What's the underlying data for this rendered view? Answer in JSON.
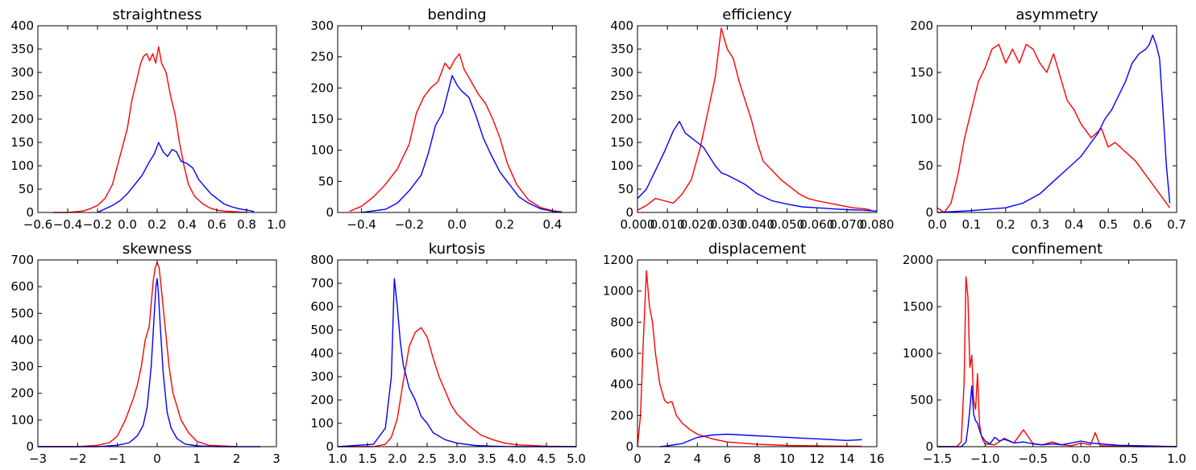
{
  "chart_data": [
    {
      "type": "line",
      "title": "straightness",
      "xlim": [
        -0.6,
        1.0
      ],
      "ylim": [
        0,
        400
      ],
      "xticks": [
        "−0.6",
        "−0.4",
        "−0.2",
        "0.0",
        "0.2",
        "0.4",
        "0.6",
        "0.8",
        "1.0"
      ],
      "yticks": [
        "0",
        "50",
        "100",
        "150",
        "200",
        "250",
        "300",
        "350",
        "400"
      ],
      "series": [
        {
          "color": "#ff0000",
          "x": [
            -0.5,
            -0.4,
            -0.3,
            -0.25,
            -0.2,
            -0.15,
            -0.1,
            -0.05,
            0.0,
            0.03,
            0.06,
            0.09,
            0.11,
            0.13,
            0.15,
            0.17,
            0.19,
            0.21,
            0.23,
            0.26,
            0.29,
            0.32,
            0.35,
            0.38,
            0.41,
            0.45,
            0.5,
            0.55,
            0.6,
            0.65,
            0.7,
            0.75,
            0.8
          ],
          "y": [
            0,
            0,
            3,
            8,
            15,
            30,
            60,
            120,
            180,
            240,
            280,
            320,
            335,
            340,
            325,
            340,
            320,
            355,
            320,
            300,
            250,
            210,
            150,
            100,
            60,
            35,
            20,
            10,
            5,
            3,
            2,
            1,
            0
          ]
        },
        {
          "color": "#0000ff",
          "x": [
            -0.2,
            -0.1,
            -0.05,
            0.0,
            0.05,
            0.1,
            0.15,
            0.18,
            0.21,
            0.24,
            0.27,
            0.3,
            0.33,
            0.36,
            0.4,
            0.44,
            0.48,
            0.52,
            0.56,
            0.6,
            0.65,
            0.7,
            0.75,
            0.8,
            0.85
          ],
          "y": [
            0,
            15,
            25,
            40,
            60,
            80,
            110,
            125,
            150,
            130,
            120,
            135,
            130,
            110,
            105,
            95,
            70,
            55,
            40,
            30,
            18,
            12,
            8,
            5,
            2
          ]
        }
      ]
    },
    {
      "type": "line",
      "title": "bending",
      "xlim": [
        -0.5,
        0.5
      ],
      "ylim": [
        0,
        300
      ],
      "xticks": [
        "−0.4",
        "−0.2",
        "0.0",
        "0.2",
        "0.4"
      ],
      "yticks": [
        "0",
        "50",
        "100",
        "150",
        "200",
        "250",
        "300"
      ],
      "series": [
        {
          "color": "#ff0000",
          "x": [
            -0.45,
            -0.4,
            -0.35,
            -0.3,
            -0.25,
            -0.2,
            -0.17,
            -0.14,
            -0.11,
            -0.08,
            -0.05,
            -0.03,
            -0.01,
            0.01,
            0.03,
            0.06,
            0.09,
            0.12,
            0.15,
            0.18,
            0.21,
            0.25,
            0.3,
            0.35,
            0.4,
            0.44
          ],
          "y": [
            2,
            10,
            25,
            45,
            70,
            110,
            160,
            185,
            200,
            210,
            240,
            230,
            245,
            255,
            230,
            210,
            190,
            175,
            150,
            120,
            80,
            45,
            20,
            8,
            3,
            1
          ]
        },
        {
          "color": "#0000ff",
          "x": [
            -0.4,
            -0.3,
            -0.25,
            -0.2,
            -0.15,
            -0.12,
            -0.09,
            -0.06,
            -0.04,
            -0.02,
            0.0,
            0.02,
            0.05,
            0.08,
            0.11,
            0.14,
            0.18,
            0.22,
            0.26,
            0.3,
            0.35,
            0.4,
            0.44
          ],
          "y": [
            0,
            5,
            15,
            35,
            60,
            95,
            140,
            160,
            190,
            220,
            205,
            195,
            185,
            155,
            120,
            95,
            65,
            45,
            25,
            15,
            6,
            2,
            0
          ]
        }
      ]
    },
    {
      "type": "line",
      "title": "efficiency",
      "xlim": [
        0.0,
        0.08
      ],
      "ylim": [
        0,
        400
      ],
      "xticks": [
        "0.000",
        "0.010",
        "0.020",
        "0.030",
        "0.040",
        "0.050",
        "0.060",
        "0.070",
        "0.080"
      ],
      "yticks": [
        "0",
        "50",
        "100",
        "150",
        "200",
        "250",
        "300",
        "350",
        "400"
      ],
      "series": [
        {
          "color": "#ff0000",
          "x": [
            0.0,
            0.003,
            0.006,
            0.009,
            0.012,
            0.015,
            0.018,
            0.021,
            0.024,
            0.026,
            0.028,
            0.03,
            0.032,
            0.034,
            0.036,
            0.038,
            0.04,
            0.042,
            0.045,
            0.048,
            0.051,
            0.054,
            0.057,
            0.06,
            0.064,
            0.068,
            0.072,
            0.076,
            0.078
          ],
          "y": [
            5,
            15,
            30,
            25,
            20,
            40,
            70,
            140,
            230,
            290,
            395,
            350,
            330,
            280,
            240,
            200,
            150,
            110,
            90,
            70,
            55,
            40,
            30,
            25,
            20,
            15,
            10,
            8,
            5
          ]
        },
        {
          "color": "#0000ff",
          "x": [
            0.0,
            0.003,
            0.006,
            0.009,
            0.012,
            0.014,
            0.016,
            0.018,
            0.02,
            0.022,
            0.024,
            0.026,
            0.028,
            0.03,
            0.033,
            0.036,
            0.04,
            0.045,
            0.05,
            0.055,
            0.06,
            0.065,
            0.07,
            0.075,
            0.08
          ],
          "y": [
            30,
            50,
            90,
            130,
            175,
            195,
            170,
            160,
            150,
            140,
            120,
            100,
            85,
            80,
            70,
            60,
            40,
            25,
            18,
            12,
            10,
            8,
            6,
            5,
            3
          ]
        }
      ]
    },
    {
      "type": "line",
      "title": "asymmetry",
      "xlim": [
        0.0,
        0.7
      ],
      "ylim": [
        0,
        200
      ],
      "xticks": [
        "0.0",
        "0.1",
        "0.2",
        "0.3",
        "0.4",
        "0.5",
        "0.6",
        "0.7"
      ],
      "yticks": [
        "0",
        "50",
        "100",
        "150",
        "200"
      ],
      "series": [
        {
          "color": "#ff0000",
          "x": [
            0.0,
            0.02,
            0.04,
            0.06,
            0.08,
            0.1,
            0.12,
            0.14,
            0.16,
            0.18,
            0.2,
            0.22,
            0.24,
            0.26,
            0.28,
            0.3,
            0.32,
            0.34,
            0.36,
            0.38,
            0.4,
            0.42,
            0.45,
            0.48,
            0.5,
            0.52,
            0.55,
            0.58,
            0.6,
            0.62,
            0.64,
            0.66,
            0.68
          ],
          "y": [
            5,
            0,
            10,
            40,
            80,
            110,
            140,
            155,
            175,
            180,
            160,
            175,
            160,
            180,
            175,
            160,
            150,
            170,
            145,
            120,
            110,
            95,
            80,
            90,
            70,
            75,
            65,
            55,
            45,
            35,
            25,
            15,
            5
          ]
        },
        {
          "color": "#0000ff",
          "x": [
            0.0,
            0.1,
            0.2,
            0.25,
            0.3,
            0.33,
            0.36,
            0.39,
            0.42,
            0.45,
            0.47,
            0.49,
            0.51,
            0.53,
            0.55,
            0.57,
            0.59,
            0.61,
            0.62,
            0.63,
            0.64,
            0.65,
            0.66,
            0.67,
            0.68
          ],
          "y": [
            0,
            2,
            5,
            10,
            20,
            30,
            40,
            50,
            60,
            75,
            85,
            100,
            110,
            125,
            140,
            160,
            170,
            175,
            180,
            190,
            180,
            165,
            110,
            50,
            10
          ]
        }
      ]
    },
    {
      "type": "line",
      "title": "skewness",
      "xlim": [
        -3,
        3
      ],
      "ylim": [
        0,
        700
      ],
      "xticks": [
        "−3",
        "−2",
        "−1",
        "0",
        "1",
        "2",
        "3"
      ],
      "yticks": [
        "0",
        "100",
        "200",
        "300",
        "400",
        "500",
        "600",
        "700"
      ],
      "series": [
        {
          "color": "#ff0000",
          "x": [
            -3.0,
            -2.0,
            -1.5,
            -1.2,
            -1.0,
            -0.8,
            -0.6,
            -0.5,
            -0.4,
            -0.3,
            -0.2,
            -0.1,
            -0.05,
            0.0,
            0.05,
            0.1,
            0.2,
            0.3,
            0.4,
            0.5,
            0.6,
            0.8,
            1.0,
            1.3,
            2.0
          ],
          "y": [
            0,
            0,
            5,
            15,
            40,
            100,
            180,
            230,
            300,
            400,
            450,
            620,
            670,
            690,
            670,
            600,
            450,
            300,
            200,
            150,
            100,
            50,
            20,
            5,
            0
          ]
        },
        {
          "color": "#0000ff",
          "x": [
            -3.0,
            -1.5,
            -1.0,
            -0.7,
            -0.5,
            -0.35,
            -0.25,
            -0.15,
            -0.08,
            -0.03,
            0.0,
            0.03,
            0.08,
            0.15,
            0.25,
            0.35,
            0.5,
            0.7,
            1.0,
            1.5,
            2.6
          ],
          "y": [
            0,
            0,
            5,
            15,
            40,
            80,
            150,
            300,
            480,
            600,
            630,
            580,
            450,
            280,
            130,
            70,
            30,
            10,
            3,
            0,
            0
          ]
        }
      ]
    },
    {
      "type": "line",
      "title": "kurtosis",
      "xlim": [
        1.0,
        5.0
      ],
      "ylim": [
        0,
        800
      ],
      "xticks": [
        "1.0",
        "1.5",
        "2.0",
        "2.5",
        "3.0",
        "3.5",
        "4.0",
        "4.5",
        "5.0"
      ],
      "yticks": [
        "0",
        "100",
        "200",
        "300",
        "400",
        "500",
        "600",
        "700",
        "800"
      ],
      "series": [
        {
          "color": "#ff0000",
          "x": [
            1.0,
            1.6,
            1.8,
            1.9,
            2.0,
            2.1,
            2.2,
            2.3,
            2.4,
            2.5,
            2.6,
            2.7,
            2.8,
            2.9,
            3.0,
            3.2,
            3.4,
            3.6,
            3.8,
            4.0,
            4.5,
            5.0
          ],
          "y": [
            0,
            0,
            10,
            40,
            120,
            280,
            430,
            490,
            510,
            470,
            380,
            300,
            240,
            180,
            140,
            90,
            50,
            30,
            15,
            8,
            2,
            0
          ]
        },
        {
          "color": "#0000ff",
          "x": [
            1.0,
            1.6,
            1.8,
            1.9,
            1.95,
            2.0,
            2.05,
            2.1,
            2.15,
            2.2,
            2.3,
            2.4,
            2.5,
            2.6,
            2.8,
            3.0,
            3.3,
            3.6,
            4.0,
            5.0
          ],
          "y": [
            0,
            10,
            80,
            300,
            720,
            600,
            450,
            350,
            300,
            250,
            200,
            130,
            100,
            60,
            30,
            15,
            5,
            2,
            0,
            0
          ]
        }
      ]
    },
    {
      "type": "line",
      "title": "displacement",
      "xlim": [
        0,
        16
      ],
      "ylim": [
        0,
        1200
      ],
      "xticks": [
        "0",
        "2",
        "4",
        "6",
        "8",
        "10",
        "12",
        "14",
        "16"
      ],
      "yticks": [
        "0",
        "200",
        "400",
        "600",
        "800",
        "1000",
        "1200"
      ],
      "series": [
        {
          "color": "#ff0000",
          "x": [
            0,
            0.2,
            0.4,
            0.6,
            0.8,
            1.0,
            1.2,
            1.5,
            1.8,
            2.0,
            2.3,
            2.6,
            3.0,
            3.5,
            4.0,
            5.0,
            6.0,
            8.0,
            10.0,
            12.0,
            15.0
          ],
          "y": [
            0,
            200,
            700,
            1130,
            900,
            800,
            600,
            400,
            300,
            280,
            290,
            200,
            150,
            110,
            80,
            50,
            30,
            15,
            8,
            5,
            2
          ]
        },
        {
          "color": "#0000ff",
          "x": [
            1.5,
            2.0,
            3.0,
            4.0,
            5.0,
            6.0,
            7.0,
            8.0,
            9.0,
            10.0,
            11.0,
            12.0,
            13.0,
            14.0,
            15.0
          ],
          "y": [
            0,
            5,
            20,
            60,
            75,
            80,
            75,
            70,
            65,
            60,
            55,
            50,
            45,
            40,
            45
          ]
        }
      ]
    },
    {
      "type": "line",
      "title": "confinement",
      "xlim": [
        -1.5,
        1.0
      ],
      "ylim": [
        0,
        2000
      ],
      "xticks": [
        "−1.5",
        "−1.0",
        "−0.5",
        "0.0",
        "0.5",
        "1.0"
      ],
      "yticks": [
        "0",
        "500",
        "1000",
        "1500",
        "2000"
      ],
      "series": [
        {
          "color": "#ff0000",
          "x": [
            -1.5,
            -1.3,
            -1.25,
            -1.22,
            -1.2,
            -1.18,
            -1.16,
            -1.14,
            -1.12,
            -1.1,
            -1.08,
            -1.06,
            -1.04,
            -1.02,
            -1.0,
            -0.9,
            -0.8,
            -0.7,
            -0.6,
            -0.5,
            -0.4,
            -0.3,
            -0.2,
            -0.1,
            0.0,
            0.1,
            0.15,
            0.2,
            0.4,
            0.6,
            1.0
          ],
          "y": [
            0,
            0,
            50,
            700,
            1820,
            1600,
            850,
            980,
            500,
            400,
            780,
            250,
            120,
            60,
            30,
            20,
            90,
            40,
            180,
            30,
            20,
            50,
            20,
            10,
            40,
            20,
            150,
            10,
            5,
            0,
            0
          ]
        },
        {
          "color": "#0000ff",
          "x": [
            -1.5,
            -1.25,
            -1.2,
            -1.18,
            -1.16,
            -1.14,
            -1.12,
            -1.1,
            -1.08,
            -1.06,
            -1.04,
            -1.0,
            -0.95,
            -0.9,
            -0.85,
            -0.8,
            -0.7,
            -0.6,
            -0.5,
            -0.4,
            -0.3,
            -0.2,
            -0.1,
            0.0,
            0.1,
            0.2,
            0.4,
            0.6,
            1.0
          ],
          "y": [
            0,
            0,
            50,
            200,
            400,
            650,
            350,
            280,
            250,
            180,
            120,
            60,
            30,
            100,
            60,
            80,
            40,
            50,
            30,
            20,
            30,
            20,
            40,
            60,
            40,
            30,
            15,
            10,
            0
          ]
        }
      ]
    }
  ]
}
